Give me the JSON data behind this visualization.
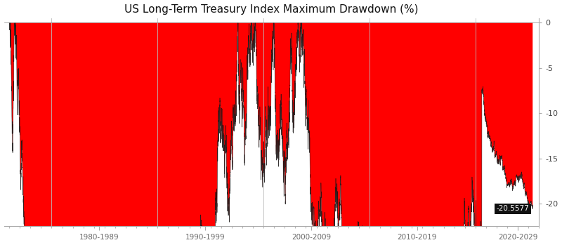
{
  "title": "US Long-Term Treasury Index Maximum Drawdown (%)",
  "title_fontsize": 11,
  "background_color": "#ffffff",
  "fill_color": "#ff0000",
  "line_color": "#111111",
  "annotation_value": "-20.5577",
  "annotation_bg": "#111111",
  "annotation_text_color": "#ffffff",
  "yticks": [
    0,
    -5,
    -10,
    -15,
    -20
  ],
  "ylim": [
    -22.5,
    0.5
  ],
  "xlim_start": 1975.5,
  "xlim_end": 2026.0,
  "xlabel_decade_labels": [
    "1980-1989",
    "1990-1999",
    "2000-2009",
    "2010-2019",
    "2020-2029"
  ],
  "xlabel_decade_positions": [
    1984.5,
    1994.5,
    2004.5,
    2014.5,
    2024.0
  ],
  "decade_boundaries": [
    1980,
    1990,
    2000,
    2010,
    2020
  ]
}
